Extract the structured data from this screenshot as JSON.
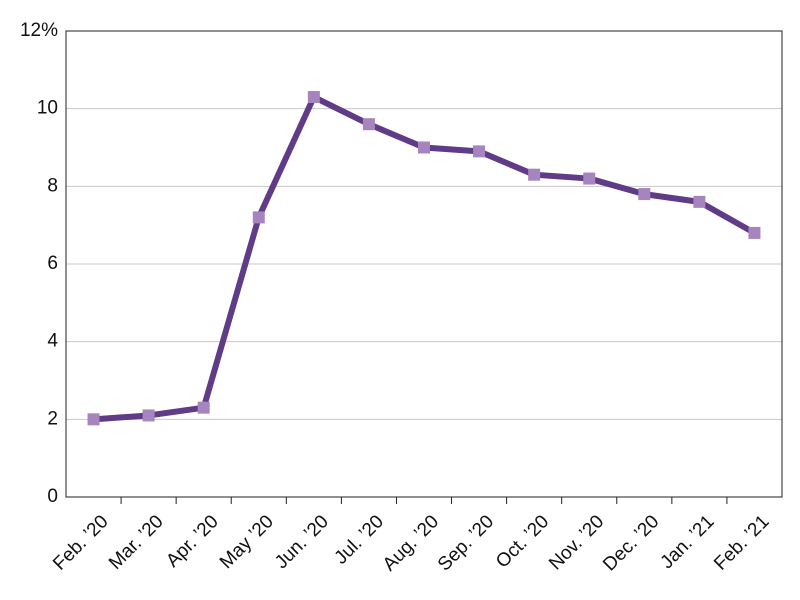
{
  "chart_data": {
    "type": "line",
    "categories": [
      "Feb. ’20",
      "Mar. ’20",
      "Apr. ’20",
      "May ’20",
      "Jun. ’20",
      "Jul. ’20",
      "Aug. ’20",
      "Sep. ’20",
      "Oct. ’20",
      "Nov. ’20",
      "Dec. ’20",
      "Jan. ’21",
      "Feb. ’21"
    ],
    "values": [
      2.0,
      2.1,
      2.3,
      7.2,
      10.3,
      9.6,
      9.0,
      8.9,
      8.3,
      8.2,
      7.8,
      7.6,
      6.8
    ],
    "color": "#5f3b88",
    "marker_color": "#a684bd",
    "ylim": [
      0,
      12
    ],
    "yticks": [
      0,
      2,
      4,
      6,
      8,
      10,
      {
        "value": 12,
        "label": "12%"
      }
    ],
    "grid": true
  }
}
